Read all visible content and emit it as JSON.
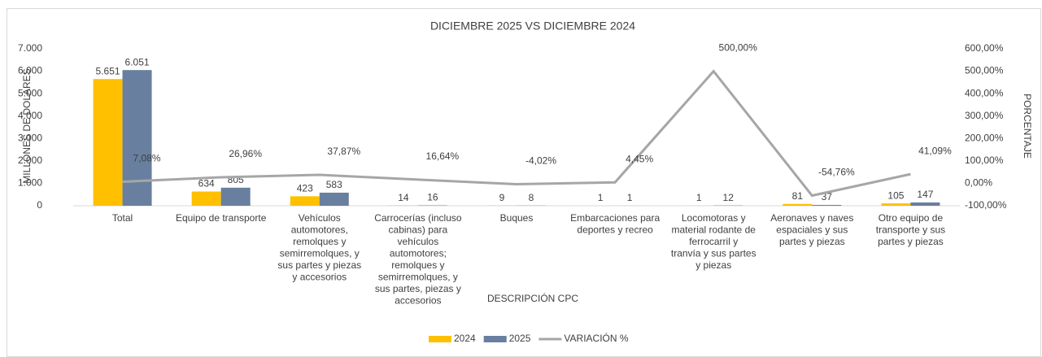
{
  "chart_data": {
    "type": "bar",
    "title": "DICIEMBRE 2025 VS DICIEMBRE 2024",
    "x_label": "DESCRIPCIÓN CPC",
    "y_label": "MILLONES DE DOLARES",
    "y2_label": "PORCENTAJE",
    "categories": [
      "Total",
      "Equipo de transporte",
      "Vehículos automotores, remolques y semirremolques, y sus partes y piezas y accesorios",
      "Carrocerías (incluso cabinas) para vehículos automotores; remolques y semirremolques, y sus partes, piezas y accesorios",
      "Buques",
      "Embarcaciones para deportes y recreo",
      "Locomotoras y material rodante de ferrocarril y tranvía y sus partes y piezas",
      "Aeronaves y naves espaciales y sus partes y piezas",
      "Otro equipo de transporte y sus partes y piezas"
    ],
    "series": [
      {
        "name": "2024",
        "type": "bar",
        "color": "#ffc000",
        "values": [
          5651,
          634,
          423,
          14,
          9,
          1,
          1,
          81,
          105
        ],
        "value_labels": [
          "5.651",
          "634",
          "423",
          "14",
          "9",
          "1",
          "1",
          "81",
          "105"
        ]
      },
      {
        "name": "2025",
        "type": "bar",
        "color": "#687f9f",
        "values": [
          6051,
          805,
          583,
          16,
          8,
          1,
          12,
          37,
          147
        ],
        "value_labels": [
          "6.051",
          "805",
          "583",
          "16",
          "8",
          "1",
          "12",
          "37",
          "147"
        ]
      },
      {
        "name": "VARIACIÓN %",
        "type": "line",
        "axis": "y2",
        "color": "#a6a6a6",
        "values": [
          7.08,
          26.96,
          37.87,
          16.64,
          -4.02,
          4.45,
          500,
          -54.76,
          41.09
        ],
        "value_labels": [
          "7,08%",
          "26,96%",
          "37,87%",
          "16,64%",
          "-4,02%",
          "4,45%",
          "500,00%",
          "-54,76%",
          "41,09%"
        ]
      }
    ],
    "ylim": [
      0,
      7000
    ],
    "yticks": [
      0,
      {
        "value": 1000,
        "label": "1.000"
      },
      {
        "value": 2000,
        "label": "2.000"
      },
      {
        "value": 3000,
        "label": "3.000"
      },
      {
        "value": 4000,
        "label": "4.000"
      },
      {
        "value": 5000,
        "label": "5.000"
      },
      {
        "value": 6000,
        "label": "6.000"
      },
      {
        "value": 7000,
        "label": "7.000"
      }
    ],
    "y2lim": [
      -100,
      600
    ],
    "y2ticks": [
      {
        "value": -100,
        "label": "-100,00%"
      },
      {
        "value": 0,
        "label": "0,00%"
      },
      {
        "value": 100,
        "label": "100,00%"
      },
      {
        "value": 200,
        "label": "200,00%"
      },
      {
        "value": 300,
        "label": "300,00%"
      },
      {
        "value": 400,
        "label": "400,00%"
      },
      {
        "value": 500,
        "label": "500,00%"
      },
      {
        "value": 600,
        "label": "600,00%"
      }
    ],
    "grid": false,
    "legend": "bottom"
  }
}
